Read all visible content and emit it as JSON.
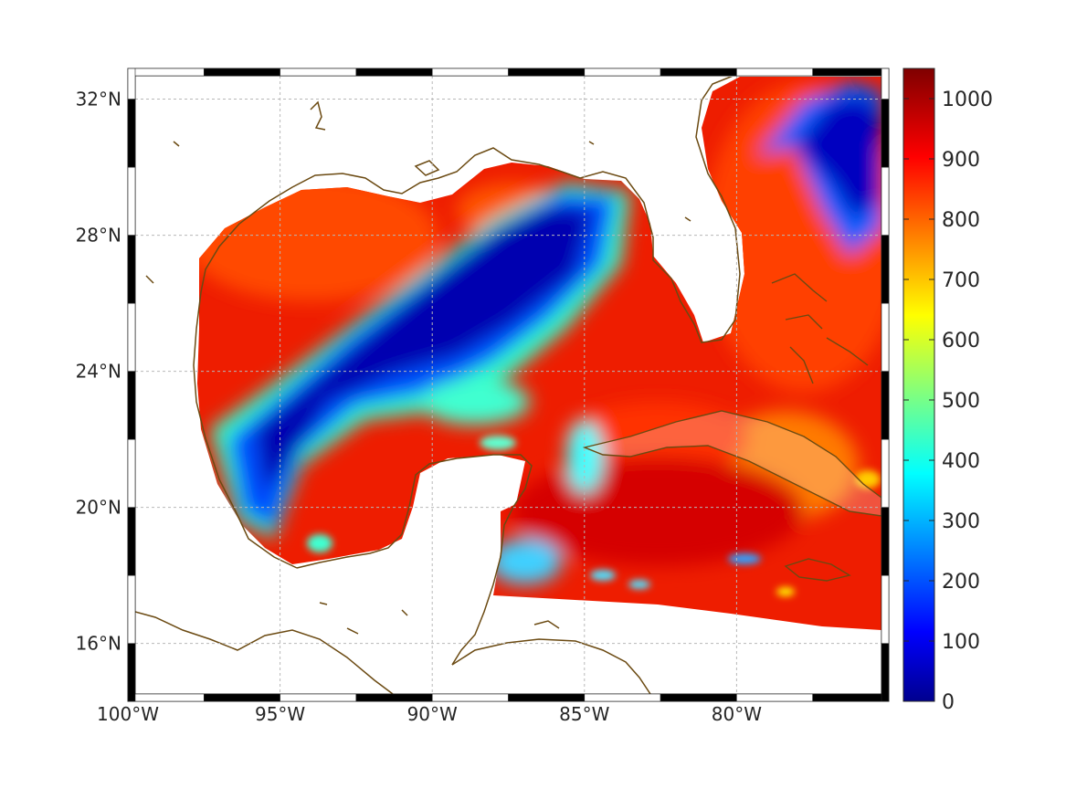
{
  "map": {
    "extent": {
      "lon_min": -100,
      "lon_max": -75,
      "lat_min": 14.3,
      "lat_max": 32.9
    },
    "lon_ticks": [
      {
        "lon": -100,
        "label": "100°W"
      },
      {
        "lon": -95,
        "label": "95°W"
      },
      {
        "lon": -90,
        "label": "90°W"
      },
      {
        "lon": -85,
        "label": "85°W"
      },
      {
        "lon": -80,
        "label": "80°W"
      }
    ],
    "lat_ticks": [
      {
        "lat": 16,
        "label": "16°N"
      },
      {
        "lat": 20,
        "label": "20°N"
      },
      {
        "lat": 24,
        "label": "24°N"
      },
      {
        "lat": 28,
        "label": "28°N"
      },
      {
        "lat": 32,
        "label": "32°N"
      }
    ],
    "grid": true,
    "colormap": "jet",
    "coastline_color": "#6b4a12"
  },
  "colorbar": {
    "min": 0,
    "max": 1050,
    "ticks": [
      {
        "value": 0,
        "label": "0"
      },
      {
        "value": 100,
        "label": "100"
      },
      {
        "value": 200,
        "label": "200"
      },
      {
        "value": 300,
        "label": "300"
      },
      {
        "value": 400,
        "label": "400"
      },
      {
        "value": 500,
        "label": "500"
      },
      {
        "value": 600,
        "label": "600"
      },
      {
        "value": 700,
        "label": "700"
      },
      {
        "value": 800,
        "label": "800"
      },
      {
        "value": 900,
        "label": "900"
      },
      {
        "value": 1000,
        "label": "1000"
      }
    ]
  }
}
